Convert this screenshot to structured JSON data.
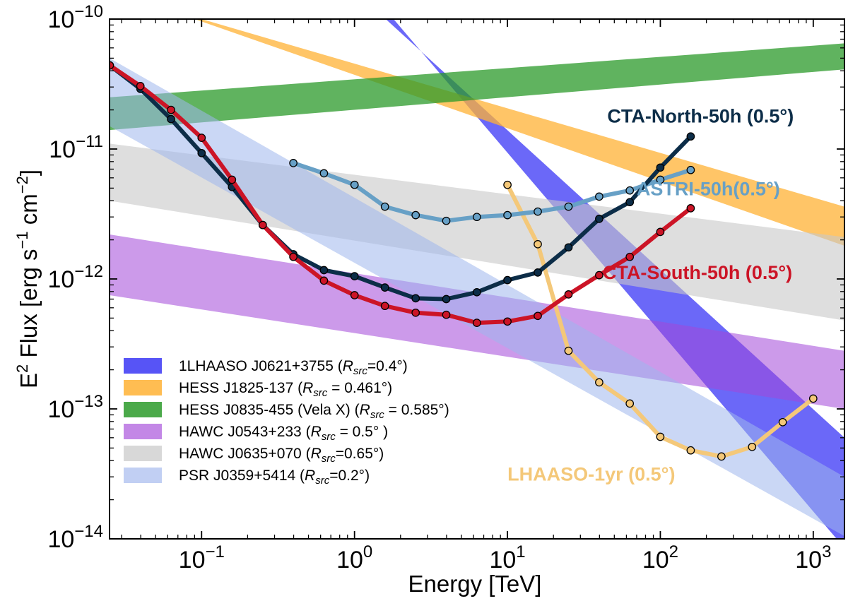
{
  "chart_data": {
    "type": "line",
    "title": "",
    "xlabel": "Energy [TeV]",
    "ylabel_parts": {
      "prefix": "E",
      "sup": "2",
      "rest": " Flux [erg s",
      "unit_sup1": "−1",
      "mid": " cm",
      "unit_sup2": "−2",
      "end": "]"
    },
    "x_scale": "log",
    "y_scale": "log",
    "xlim": [
      0.025,
      1600
    ],
    "ylim": [
      1e-14,
      1e-10
    ],
    "x_ticks": [
      {
        "value": 0.1,
        "base": "10",
        "exp": "−1"
      },
      {
        "value": 1,
        "base": "10",
        "exp": "0"
      },
      {
        "value": 10,
        "base": "10",
        "exp": "1"
      },
      {
        "value": 100,
        "base": "10",
        "exp": "2"
      },
      {
        "value": 1000,
        "base": "10",
        "exp": "3"
      }
    ],
    "y_ticks": [
      {
        "value": 1e-14,
        "base": "10",
        "exp": "−14"
      },
      {
        "value": 1e-13,
        "base": "10",
        "exp": "−13"
      },
      {
        "value": 1e-12,
        "base": "10",
        "exp": "−12"
      },
      {
        "value": 1e-11,
        "base": "10",
        "exp": "−11"
      },
      {
        "value": 1e-10,
        "base": "10",
        "exp": "−10"
      }
    ],
    "bands": [
      {
        "name": "1LHAASO J0621+3755",
        "rsrc": "=0.4°",
        "color": "#3a36f5",
        "opacity": 0.75,
        "upper": [
          [
            0.045,
            1e-10
          ],
          [
            1.6,
            1e-10
          ],
          [
            1600,
            6e-14
          ]
        ],
        "lower": [
          [
            0.045,
            1e-10
          ],
          [
            1.8,
            1e-10
          ],
          [
            1600,
            8.5e-15
          ]
        ]
      },
      {
        "name": "HESS J1825-137",
        "rsrc": " = 0.461°",
        "color": "#ffb234",
        "opacity": 0.75,
        "upper": [
          [
            0.1,
            1e-10
          ],
          [
            1600,
            3.6e-12
          ]
        ],
        "lower": [
          [
            0.09,
            1e-10
          ],
          [
            1600,
            1.8e-12
          ]
        ]
      },
      {
        "name": "HESS J0835-455 (Vela X)",
        "rsrc": " = 0.585°",
        "color": "#2b9a2a",
        "opacity": 0.75,
        "upper": [
          [
            0.025,
            2.5e-11
          ],
          [
            1600,
            6.5e-11
          ]
        ],
        "lower": [
          [
            0.025,
            1.4e-11
          ],
          [
            1600,
            4.1e-11
          ]
        ]
      },
      {
        "name": "HAWC J0543+233",
        "rsrc": " =  0.5° ",
        "color": "#a347d9",
        "opacity": 0.55,
        "upper": [
          [
            0.025,
            2.2e-12
          ],
          [
            1600,
            2.8e-13
          ]
        ],
        "lower": [
          [
            0.025,
            7.5e-13
          ],
          [
            1600,
            1e-13
          ]
        ]
      },
      {
        "name": "HAWC J0635+070",
        "rsrc": "=0.65°",
        "color": "#c8c8c8",
        "opacity": 0.6,
        "upper": [
          [
            0.025,
            1.1e-11
          ],
          [
            1600,
            2.1e-12
          ]
        ],
        "lower": [
          [
            0.025,
            4e-12
          ],
          [
            1600,
            4.8e-13
          ]
        ]
      },
      {
        "name": "PSR J0359+5414",
        "rsrc": "=0.2°",
        "color": "#9fb6ec",
        "opacity": 0.55,
        "upper": [
          [
            0.025,
            5e-11
          ],
          [
            1600,
            3e-14
          ]
        ],
        "lower": [
          [
            0.025,
            1.5e-11
          ],
          [
            1600,
            1.05e-14
          ]
        ]
      }
    ],
    "series": [
      {
        "name": "LHAASO-1yr (0.5°)",
        "label": "LHAASO-1yr (0.5°)",
        "color": "#f4c879",
        "label_at": [
          10,
          2.8e-14
        ],
        "points": [
          [
            10,
            5.3e-12
          ],
          [
            15.8,
            1.85e-12
          ],
          [
            25.1,
            2.8e-13
          ],
          [
            39.8,
            1.6e-13
          ],
          [
            63.1,
            1.1e-13
          ],
          [
            100,
            6.1e-14
          ],
          [
            158,
            4.8e-14
          ],
          [
            251,
            4.3e-14
          ],
          [
            398,
            5.1e-14
          ],
          [
            631,
            7.9e-14
          ],
          [
            1000,
            1.2e-13
          ]
        ]
      },
      {
        "name": "ASTRI-50h(0.5°)",
        "label": "ASTRI-50h(0.5°)",
        "color": "#67a0c6",
        "label_at": [
          70,
          4.4e-12
        ],
        "points": [
          [
            0.398,
            7.8e-12
          ],
          [
            0.631,
            6.5e-12
          ],
          [
            1.0,
            5.3e-12
          ],
          [
            1.58,
            3.6e-12
          ],
          [
            2.51,
            3.1e-12
          ],
          [
            3.98,
            2.8e-12
          ],
          [
            6.31,
            3e-12
          ],
          [
            10,
            3.1e-12
          ],
          [
            15.8,
            3.3e-12
          ],
          [
            25.1,
            3.6e-12
          ],
          [
            39.8,
            4.3e-12
          ],
          [
            63.1,
            4.8e-12
          ],
          [
            100,
            5.8e-12
          ],
          [
            158,
            6.9e-12
          ]
        ]
      },
      {
        "name": "CTA-North-50h (0.5°)",
        "label": "CTA-North-50h (0.5°)",
        "color": "#0c2d48",
        "label_at": [
          45,
          1.6e-11
        ],
        "points": [
          [
            0.0251,
            4.4e-11
          ],
          [
            0.0398,
            2.9e-11
          ],
          [
            0.0631,
            1.7e-11
          ],
          [
            0.1,
            9.3e-12
          ],
          [
            0.158,
            5.1e-12
          ],
          [
            0.251,
            2.6e-12
          ],
          [
            0.398,
            1.55e-12
          ],
          [
            0.631,
            1.17e-12
          ],
          [
            1.0,
            1.05e-12
          ],
          [
            1.58,
            8.6e-13
          ],
          [
            2.51,
            7.1e-13
          ],
          [
            3.98,
            7e-13
          ],
          [
            6.31,
            7.9e-13
          ],
          [
            10,
            9.8e-13
          ],
          [
            15.8,
            1.12e-12
          ],
          [
            25.1,
            1.75e-12
          ],
          [
            39.8,
            2.9e-12
          ],
          [
            63.1,
            3.9e-12
          ],
          [
            100,
            7.2e-12
          ],
          [
            158,
            1.25e-11
          ]
        ]
      },
      {
        "name": "CTA-South-50h (0.5°)",
        "label": "CTA-South-50h (0.5°)",
        "color": "#cc1426",
        "label_at": [
          42,
          1e-12
        ],
        "points": [
          [
            0.0251,
            4.4e-11
          ],
          [
            0.0398,
            3.05e-11
          ],
          [
            0.0631,
            2e-11
          ],
          [
            0.1,
            1.22e-11
          ],
          [
            0.158,
            5.8e-12
          ],
          [
            0.251,
            2.6e-12
          ],
          [
            0.398,
            1.48e-12
          ],
          [
            0.631,
            9.7e-13
          ],
          [
            1.0,
            7.5e-13
          ],
          [
            1.58,
            6.2e-13
          ],
          [
            2.51,
            5.5e-13
          ],
          [
            3.98,
            5.3e-13
          ],
          [
            6.31,
            4.6e-13
          ],
          [
            10,
            4.7e-13
          ],
          [
            15.8,
            5.2e-13
          ],
          [
            25.1,
            7.6e-13
          ],
          [
            39.8,
            1.07e-12
          ],
          [
            63.1,
            1.48e-12
          ],
          [
            100,
            2.3e-12
          ],
          [
            158,
            3.5e-12
          ]
        ]
      }
    ],
    "legend": {
      "placement": "lower-left",
      "rsrc_symbol": "R",
      "rsrc_sub": "src"
    }
  }
}
